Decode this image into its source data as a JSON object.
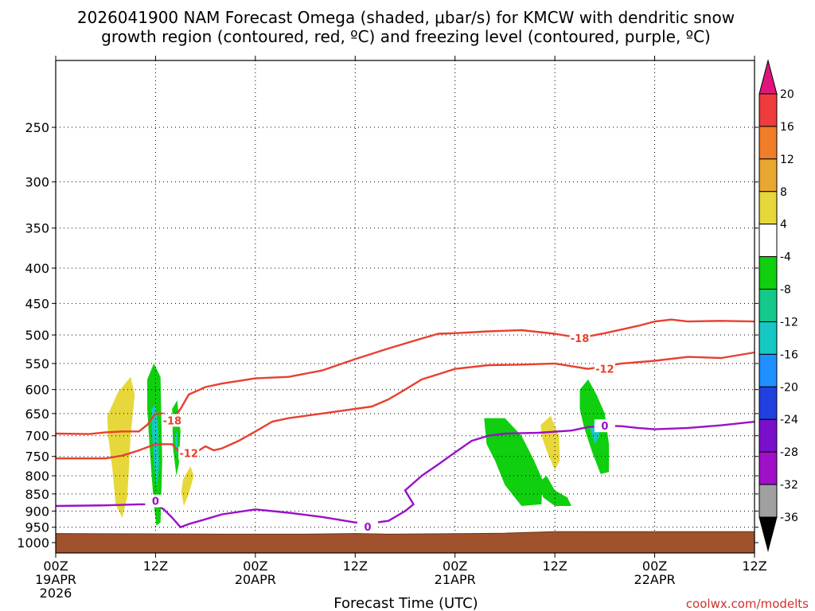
{
  "chart_data": {
    "type": "time-height",
    "title_lines": [
      "2026041900 NAM Forecast Omega (shaded, μbar/s) for KMCW with dendritic snow",
      "growth region (contoured, red, ºC) and freezing level (contoured, purple, ºC)"
    ],
    "xlabel": "Forecast Time (UTC)",
    "credit": "coolwx.com/modelts",
    "x_range_hours": [
      0,
      84
    ],
    "x_ticks": [
      {
        "hour": 0,
        "line1": "00Z",
        "line2": "19APR",
        "line3": "2026"
      },
      {
        "hour": 12,
        "line1": "12Z",
        "line2": "",
        "line3": ""
      },
      {
        "hour": 24,
        "line1": "00Z",
        "line2": "20APR",
        "line3": ""
      },
      {
        "hour": 36,
        "line1": "12Z",
        "line2": "",
        "line3": ""
      },
      {
        "hour": 48,
        "line1": "00Z",
        "line2": "21APR",
        "line3": ""
      },
      {
        "hour": 60,
        "line1": "12Z",
        "line2": "",
        "line3": ""
      },
      {
        "hour": 72,
        "line1": "00Z",
        "line2": "22APR",
        "line3": ""
      },
      {
        "hour": 84,
        "line1": "12Z",
        "line2": "",
        "line3": ""
      }
    ],
    "y_axis": "pressure (hPa), log scale, inverted",
    "y_range": [
      1035,
      200
    ],
    "y_ticks": [
      250,
      300,
      350,
      400,
      450,
      500,
      550,
      600,
      650,
      700,
      750,
      800,
      850,
      900,
      950,
      1000
    ],
    "ground_pressure": [
      [
        0,
        970
      ],
      [
        20,
        972
      ],
      [
        30,
        972
      ],
      [
        36,
        970
      ],
      [
        40,
        972
      ],
      [
        50,
        970
      ],
      [
        54,
        969
      ],
      [
        60,
        964
      ],
      [
        70,
        964
      ],
      [
        84,
        964
      ]
    ],
    "colorbar": {
      "labels": [
        "20",
        "16",
        "12",
        "8",
        "4",
        "-4",
        "-8",
        "-12",
        "-16",
        "-20",
        "-24",
        "-28",
        "-32",
        "-36"
      ],
      "top_arrow_color": "#e0157b",
      "bottom_arrow_color": "#000000",
      "bins": [
        {
          "color": "#ee3b3b"
        },
        {
          "color": "#f07d28"
        },
        {
          "color": "#e8a830"
        },
        {
          "color": "#e6d83a"
        },
        {
          "color": "#ffffff"
        },
        {
          "color": "#0fcf0f"
        },
        {
          "color": "#14c98a"
        },
        {
          "color": "#16c8c4"
        },
        {
          "color": "#1e90ff"
        },
        {
          "color": "#2040e0"
        },
        {
          "color": "#7a10cc"
        },
        {
          "color": "#a010c8"
        },
        {
          "color": "#a0a0a0"
        }
      ]
    },
    "series": [
      {
        "name": "-18C isotherm",
        "color": "#e8402e",
        "label": "-18",
        "labels_at": [
          [
            14,
            665
          ],
          [
            63,
            505
          ]
        ],
        "points": [
          [
            0,
            695
          ],
          [
            4,
            696
          ],
          [
            6,
            692
          ],
          [
            8,
            690
          ],
          [
            10,
            690
          ],
          [
            11,
            675
          ],
          [
            12,
            650
          ],
          [
            13,
            650
          ],
          [
            14,
            665
          ],
          [
            15,
            640
          ],
          [
            16,
            610
          ],
          [
            18,
            595
          ],
          [
            20,
            588
          ],
          [
            24,
            578
          ],
          [
            28,
            575
          ],
          [
            32,
            563
          ],
          [
            36,
            542
          ],
          [
            40,
            523
          ],
          [
            44,
            506
          ],
          [
            46,
            498
          ],
          [
            48,
            497
          ],
          [
            52,
            494
          ],
          [
            56,
            492
          ],
          [
            60,
            498
          ],
          [
            63,
            505
          ],
          [
            66,
            497
          ],
          [
            70,
            485
          ],
          [
            72,
            478
          ],
          [
            74,
            475
          ],
          [
            76,
            478
          ],
          [
            80,
            477
          ],
          [
            84,
            478
          ]
        ]
      },
      {
        "name": "-12C isotherm",
        "color": "#e8402e",
        "label": "-12",
        "labels_at": [
          [
            16,
            742
          ],
          [
            66,
            560
          ]
        ],
        "points": [
          [
            0,
            755
          ],
          [
            6,
            755
          ],
          [
            8,
            748
          ],
          [
            10,
            735
          ],
          [
            12,
            720
          ],
          [
            14,
            720
          ],
          [
            15,
            742
          ],
          [
            17,
            738
          ],
          [
            18,
            725
          ],
          [
            19,
            735
          ],
          [
            20,
            730
          ],
          [
            22,
            712
          ],
          [
            24,
            690
          ],
          [
            26,
            668
          ],
          [
            28,
            660
          ],
          [
            32,
            650
          ],
          [
            38,
            635
          ],
          [
            40,
            620
          ],
          [
            42,
            600
          ],
          [
            44,
            580
          ],
          [
            46,
            570
          ],
          [
            48,
            560
          ],
          [
            52,
            553
          ],
          [
            56,
            552
          ],
          [
            60,
            550
          ],
          [
            64,
            560
          ],
          [
            68,
            550
          ],
          [
            72,
            545
          ],
          [
            76,
            538
          ],
          [
            80,
            540
          ],
          [
            82,
            535
          ],
          [
            84,
            530
          ]
        ]
      },
      {
        "name": "0C freezing level",
        "color": "#9a10c8",
        "label": "0",
        "labels_at": [
          [
            12,
            870
          ],
          [
            37.5,
            948
          ],
          [
            66,
            677
          ]
        ],
        "points": [
          [
            0,
            885
          ],
          [
            6,
            883
          ],
          [
            10,
            880
          ],
          [
            12,
            880
          ],
          [
            13,
            895
          ],
          [
            14,
            920
          ],
          [
            15,
            950
          ],
          [
            16,
            940
          ],
          [
            18,
            925
          ],
          [
            20,
            910
          ],
          [
            24,
            895
          ],
          [
            28,
            905
          ],
          [
            32,
            918
          ],
          [
            36,
            935
          ],
          [
            38,
            937
          ],
          [
            40,
            930
          ],
          [
            42,
            900
          ],
          [
            43,
            880
          ],
          [
            42,
            840
          ],
          [
            44,
            800
          ],
          [
            46,
            770
          ],
          [
            48,
            740
          ],
          [
            50,
            712
          ],
          [
            52,
            700
          ],
          [
            54,
            695
          ],
          [
            58,
            693
          ],
          [
            62,
            688
          ],
          [
            64,
            680
          ],
          [
            66,
            677
          ],
          [
            68,
            678
          ],
          [
            70,
            682
          ],
          [
            72,
            685
          ],
          [
            76,
            682
          ],
          [
            80,
            676
          ],
          [
            84,
            668
          ]
        ]
      }
    ],
    "omega_regions": [
      {
        "bin": 3,
        "points": [
          [
            6.2,
            655
          ],
          [
            7.5,
            605
          ],
          [
            9,
            575
          ],
          [
            9.5,
            610
          ],
          [
            9,
            700
          ],
          [
            8.8,
            780
          ],
          [
            8.6,
            860
          ],
          [
            8,
            920
          ],
          [
            7.2,
            880
          ],
          [
            6.8,
            780
          ],
          [
            6.3,
            700
          ]
        ]
      },
      {
        "bin": 5,
        "points": [
          [
            11,
            580
          ],
          [
            11.8,
            550
          ],
          [
            12.6,
            575
          ],
          [
            12.7,
            660
          ],
          [
            12.8,
            760
          ],
          [
            12.7,
            850
          ],
          [
            12.6,
            935
          ],
          [
            12.1,
            945
          ],
          [
            11.8,
            880
          ],
          [
            11.5,
            790
          ],
          [
            11.2,
            700
          ],
          [
            11,
            640
          ]
        ]
      },
      {
        "bin": 7,
        "points": [
          [
            11.5,
            640
          ],
          [
            12,
            630
          ],
          [
            12.3,
            680
          ],
          [
            12.4,
            770
          ],
          [
            12.2,
            830
          ],
          [
            11.9,
            790
          ],
          [
            11.6,
            700
          ]
        ]
      },
      {
        "bin": 5,
        "points": [
          [
            14,
            640
          ],
          [
            14.6,
            622
          ],
          [
            15,
            690
          ],
          [
            14.8,
            770
          ],
          [
            14.5,
            800
          ],
          [
            14.1,
            730
          ]
        ]
      },
      {
        "bin": 7,
        "points": [
          [
            14.3,
            700
          ],
          [
            14.6,
            690
          ],
          [
            14.7,
            730
          ],
          [
            14.5,
            745
          ]
        ]
      },
      {
        "bin": 3,
        "points": [
          [
            15.3,
            810
          ],
          [
            16.2,
            775
          ],
          [
            16.6,
            800
          ],
          [
            16,
            850
          ],
          [
            15.4,
            885
          ],
          [
            15.1,
            845
          ]
        ]
      },
      {
        "bin": 5,
        "points": [
          [
            51.5,
            660
          ],
          [
            54,
            660
          ],
          [
            56,
            700
          ],
          [
            57.5,
            760
          ],
          [
            58.5,
            810
          ],
          [
            58.4,
            880
          ],
          [
            56,
            885
          ],
          [
            54,
            825
          ],
          [
            52.8,
            760
          ],
          [
            51.8,
            720
          ]
        ]
      },
      {
        "bin": 5,
        "points": [
          [
            58,
            820
          ],
          [
            59,
            800
          ],
          [
            60,
            840
          ],
          [
            61.5,
            860
          ],
          [
            62,
            885
          ],
          [
            60,
            885
          ],
          [
            58.6,
            860
          ]
        ]
      },
      {
        "bin": 3,
        "points": [
          [
            58.3,
            675
          ],
          [
            59.5,
            655
          ],
          [
            60.5,
            700
          ],
          [
            60.6,
            760
          ],
          [
            60,
            785
          ],
          [
            59,
            735
          ],
          [
            58.4,
            700
          ]
        ]
      },
      {
        "bin": 5,
        "points": [
          [
            63,
            600
          ],
          [
            64,
            580
          ],
          [
            65,
            610
          ],
          [
            66,
            650
          ],
          [
            66.5,
            720
          ],
          [
            66.5,
            790
          ],
          [
            65.5,
            795
          ],
          [
            64.5,
            740
          ],
          [
            63.5,
            680
          ],
          [
            63,
            640
          ]
        ]
      },
      {
        "bin": 7,
        "points": [
          [
            64.2,
            680
          ],
          [
            65,
            670
          ],
          [
            65.4,
            700
          ],
          [
            64.8,
            720
          ]
        ]
      }
    ]
  }
}
